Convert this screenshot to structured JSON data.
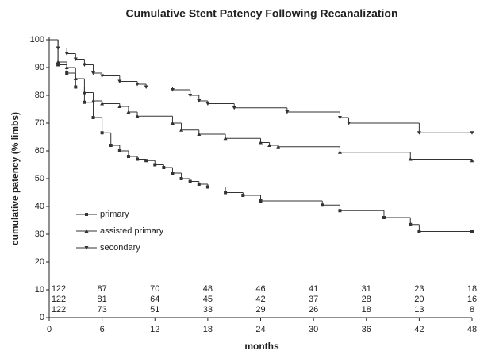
{
  "chart_data": {
    "type": "step",
    "title": "Cumulative Stent Patency Following Recanalization",
    "xlabel": "months",
    "ylabel": "cumulative patency (% limbs)",
    "xlim": [
      0,
      48
    ],
    "xticks": [
      0,
      6,
      12,
      18,
      24,
      30,
      36,
      42,
      48
    ],
    "ylim": [
      0,
      100
    ],
    "yticks": [
      0,
      10,
      20,
      30,
      40,
      50,
      60,
      70,
      80,
      90,
      100
    ],
    "legend": "lower left",
    "series": [
      {
        "name": "primary",
        "color": "#333333",
        "marker": "square",
        "x": [
          0,
          1,
          2,
          3,
          4,
          5,
          6,
          7,
          8,
          9,
          10,
          11,
          12,
          13,
          14,
          15,
          16,
          17,
          18,
          20,
          22,
          24,
          31,
          33,
          38,
          41,
          42,
          48
        ],
        "values": [
          100,
          91,
          88,
          83,
          77.5,
          72,
          66.5,
          62,
          60,
          58,
          57,
          56.5,
          55,
          54,
          52,
          50,
          49,
          48,
          47,
          45,
          44,
          42,
          40.5,
          38.5,
          36,
          33.5,
          31,
          31
        ]
      },
      {
        "name": "assisted primary",
        "color": "#333333",
        "marker": "triangle-up",
        "x": [
          0,
          1,
          2,
          3,
          4,
          5,
          6,
          8,
          9,
          10,
          14,
          15,
          17,
          20,
          24,
          25,
          26,
          33,
          41,
          48
        ],
        "values": [
          100,
          92,
          90,
          86,
          81,
          78,
          77,
          76,
          74,
          72.5,
          70,
          67.5,
          66,
          64.5,
          63,
          62,
          61.5,
          59.5,
          57,
          56.5
        ]
      },
      {
        "name": "secondary",
        "color": "#333333",
        "marker": "triangle-down",
        "x": [
          0,
          1,
          2,
          3,
          4,
          5,
          6,
          8,
          10,
          11,
          14,
          16,
          17,
          18,
          21,
          27,
          33,
          34,
          42,
          48
        ],
        "values": [
          100,
          97,
          95,
          93,
          91,
          88,
          87,
          85,
          84,
          83,
          82,
          80,
          78,
          77,
          75.5,
          74,
          72,
          70,
          66.5,
          66.5
        ]
      }
    ],
    "at_risk": [
      [
        122,
        87,
        70,
        48,
        46,
        41,
        31,
        23,
        18
      ],
      [
        122,
        81,
        64,
        45,
        42,
        37,
        28,
        20,
        16
      ],
      [
        122,
        73,
        51,
        33,
        29,
        26,
        18,
        13,
        8
      ]
    ]
  }
}
